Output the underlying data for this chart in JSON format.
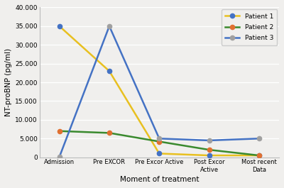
{
  "categories": [
    "Admission",
    "Pre EXCOR",
    "Pre Excor Active",
    "Post Excor\nActive",
    "Most recent\nData"
  ],
  "patient1": [
    35000,
    23000,
    1000,
    500,
    500
  ],
  "patient2": [
    7000,
    6500,
    4200,
    2000,
    500
  ],
  "patient3": [
    100,
    35000,
    5000,
    4500,
    5000
  ],
  "patient1_line_color": "#E8C020",
  "patient1_marker_color": "#4472C4",
  "patient2_line_color": "#3A8A2E",
  "patient2_marker_color": "#E07030",
  "patient3_line_color": "#4472C4",
  "patient3_marker_color": "#A0A0A0",
  "ylabel": "NT-proBNP (pg/ml)",
  "xlabel": "Moment of treatment",
  "ylim": [
    0,
    40000
  ],
  "yticks": [
    0,
    5000,
    10000,
    15000,
    20000,
    25000,
    30000,
    35000,
    40000
  ],
  "ytick_labels": [
    "0",
    "5.000",
    "10.000",
    "15.000",
    "20.000",
    "25.000",
    "30.000",
    "35.000",
    "40.000"
  ],
  "background_color": "#f0efed",
  "plot_bg_color": "#f0efed",
  "grid_color": "#ffffff"
}
